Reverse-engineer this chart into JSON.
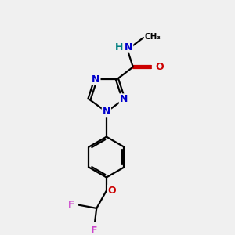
{
  "bg_color": "#f0f0f0",
  "bond_color": "#000000",
  "N_color": "#0000cc",
  "O_color": "#cc0000",
  "F_color": "#cc44cc",
  "H_color": "#008080",
  "line_width": 1.6,
  "font_size": 9,
  "fig_size": [
    3.0,
    3.0
  ],
  "dpi": 100,
  "xlim": [
    0,
    10
  ],
  "ylim": [
    0,
    10
  ]
}
